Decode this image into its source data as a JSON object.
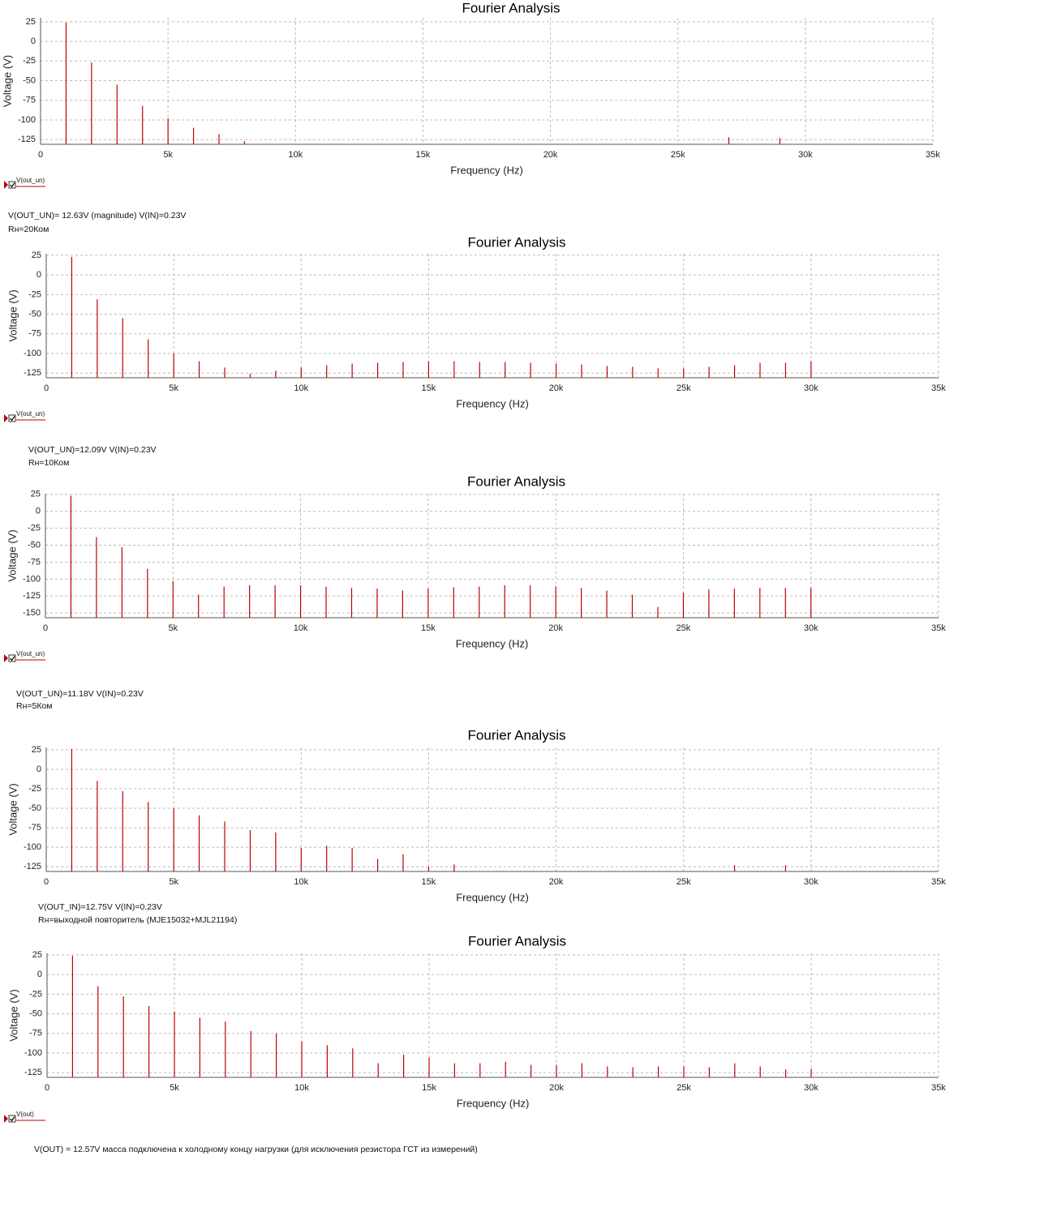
{
  "chart_data": [
    {
      "type": "bar",
      "title": "Fourier Analysis",
      "x_label": "Frequency (Hz)",
      "y_label": "Voltage (V)",
      "grid": true,
      "xlim": [
        0,
        35000
      ],
      "ylim": [
        -131,
        30
      ],
      "xticks": [
        0,
        {
          "value": 5000,
          "label": "5k"
        },
        {
          "value": 10000,
          "label": "10k"
        },
        {
          "value": 15000,
          "label": "15k"
        },
        {
          "value": 20000,
          "label": "20k"
        },
        {
          "value": 25000,
          "label": "25k"
        },
        {
          "value": 30000,
          "label": "30k"
        },
        {
          "value": 35000,
          "label": "35k"
        }
      ],
      "yticks": [
        25,
        0,
        -25,
        -50,
        -75,
        -100,
        -125
      ],
      "series": [
        {
          "name": "V(out_un)",
          "color": "#c00000",
          "x": [
            1000,
            2000,
            3000,
            4000,
            5000,
            6000,
            7000,
            8000,
            27000,
            29000
          ],
          "values": [
            24,
            -27,
            -55,
            -82,
            -98,
            -110,
            -118,
            -127,
            -122,
            -123
          ]
        }
      ]
    },
    {
      "type": "bar",
      "title": "Fourier Analysis",
      "x_label": "Frequency (Hz)",
      "y_label": "Voltage (V)",
      "grid": true,
      "xlim": [
        0,
        35000
      ],
      "ylim": [
        -131,
        27
      ],
      "xticks": [
        0,
        {
          "value": 5000,
          "label": "5k"
        },
        {
          "value": 10000,
          "label": "10k"
        },
        {
          "value": 15000,
          "label": "15k"
        },
        {
          "value": 20000,
          "label": "20k"
        },
        {
          "value": 25000,
          "label": "25k"
        },
        {
          "value": 30000,
          "label": "30k"
        },
        {
          "value": 35000,
          "label": "35k"
        }
      ],
      "yticks": [
        25,
        0,
        -25,
        -50,
        -75,
        -100,
        -125
      ],
      "series": [
        {
          "name": "V(out_un)",
          "color": "#c00000",
          "x": [
            1000,
            2000,
            3000,
            4000,
            5000,
            6000,
            7000,
            8000,
            9000,
            10000,
            11000,
            12000,
            13000,
            14000,
            15000,
            16000,
            17000,
            18000,
            19000,
            20000,
            21000,
            22000,
            23000,
            24000,
            25000,
            26000,
            27000,
            28000,
            29000,
            30000
          ],
          "values": [
            23,
            -31,
            -55,
            -82,
            -100,
            -110,
            -118,
            -126,
            -122,
            -118,
            -115,
            -113,
            -112,
            -111,
            -110,
            -110,
            -111,
            -111,
            -112,
            -113,
            -114,
            -116,
            -117,
            -119,
            -119,
            -117,
            -115,
            -112,
            -112,
            -110
          ]
        }
      ]
    },
    {
      "type": "bar",
      "title": "Fourier Analysis",
      "x_label": "Frequency (Hz)",
      "y_label": "Voltage (V)",
      "grid": true,
      "xlim": [
        0,
        35000
      ],
      "ylim": [
        -157,
        26
      ],
      "xticks": [
        0,
        {
          "value": 5000,
          "label": "5k"
        },
        {
          "value": 10000,
          "label": "10k"
        },
        {
          "value": 15000,
          "label": "15k"
        },
        {
          "value": 20000,
          "label": "20k"
        },
        {
          "value": 25000,
          "label": "25k"
        },
        {
          "value": 30000,
          "label": "30k"
        },
        {
          "value": 35000,
          "label": "35k"
        }
      ],
      "yticks": [
        25,
        0,
        -25,
        -50,
        -75,
        -100,
        -125,
        -150
      ],
      "series": [
        {
          "name": "V(out_un)",
          "color": "#c00000",
          "x": [
            1000,
            2000,
            3000,
            4000,
            5000,
            6000,
            7000,
            8000,
            9000,
            10000,
            11000,
            12000,
            13000,
            14000,
            15000,
            16000,
            17000,
            18000,
            19000,
            20000,
            21000,
            22000,
            23000,
            24000,
            25000,
            26000,
            27000,
            28000,
            29000,
            30000
          ],
          "values": [
            23,
            -38,
            -53,
            -85,
            -103,
            -123,
            -111,
            -109,
            -109,
            -109,
            -111,
            -113,
            -114,
            -117,
            -114,
            -112,
            -111,
            -109,
            -109,
            -111,
            -113,
            -117,
            -123,
            -141,
            -120,
            -115,
            -114,
            -113,
            -113,
            -113
          ]
        }
      ]
    },
    {
      "type": "bar",
      "title": "Fourier Analysis",
      "x_label": "Frequency (Hz)",
      "y_label": "Voltage (V)",
      "grid": true,
      "xlim": [
        0,
        35000
      ],
      "ylim": [
        -131,
        28
      ],
      "xticks": [
        0,
        {
          "value": 5000,
          "label": "5k"
        },
        {
          "value": 10000,
          "label": "10k"
        },
        {
          "value": 15000,
          "label": "15k"
        },
        {
          "value": 20000,
          "label": "20k"
        },
        {
          "value": 25000,
          "label": "25k"
        },
        {
          "value": 30000,
          "label": "30k"
        },
        {
          "value": 35000,
          "label": "35k"
        }
      ],
      "yticks": [
        25,
        0,
        -25,
        -50,
        -75,
        -100,
        -125
      ],
      "series": [
        {
          "color": "#c00000",
          "x": [
            1000,
            2000,
            3000,
            4000,
            5000,
            6000,
            7000,
            8000,
            9000,
            10000,
            11000,
            12000,
            13000,
            14000,
            15000,
            16000,
            27000,
            29000
          ],
          "values": [
            26,
            -15,
            -28,
            -42,
            -50,
            -59,
            -67,
            -78,
            -81,
            -101,
            -98,
            -101,
            -115,
            -109,
            -125,
            -122,
            -123,
            -123
          ]
        }
      ]
    },
    {
      "type": "bar",
      "title": "Fourier Analysis",
      "x_label": "Frequency (Hz)",
      "y_label": "Voltage (V)",
      "grid": true,
      "xlim": [
        0,
        35000
      ],
      "ylim": [
        -131,
        27
      ],
      "xticks": [
        0,
        {
          "value": 5000,
          "label": "5k"
        },
        {
          "value": 10000,
          "label": "10k"
        },
        {
          "value": 15000,
          "label": "15k"
        },
        {
          "value": 20000,
          "label": "20k"
        },
        {
          "value": 25000,
          "label": "25k"
        },
        {
          "value": 30000,
          "label": "30k"
        },
        {
          "value": 35000,
          "label": "35k"
        }
      ],
      "yticks": [
        25,
        0,
        -25,
        -50,
        -75,
        -100,
        -125
      ],
      "series": [
        {
          "name": "V(out)",
          "color": "#c00000",
          "x": [
            1000,
            2000,
            3000,
            4000,
            5000,
            6000,
            7000,
            8000,
            9000,
            10000,
            11000,
            12000,
            13000,
            14000,
            15000,
            16000,
            17000,
            18000,
            19000,
            20000,
            21000,
            22000,
            23000,
            24000,
            25000,
            26000,
            27000,
            28000,
            29000,
            30000
          ],
          "values": [
            24,
            -15,
            -28,
            -40,
            -47,
            -55,
            -60,
            -72,
            -75,
            -85,
            -90,
            -94,
            -113,
            -102,
            -106,
            -113,
            -113,
            -111,
            -115,
            -115,
            -113,
            -117,
            -118,
            -117,
            -117,
            -118,
            -113,
            -117,
            -121,
            -120
          ]
        }
      ]
    }
  ],
  "captions": [
    [
      "V(OUT_UN)= 12.63V (magnitude)  V(IN)=0.23V",
      "Rн=20Ком"
    ],
    [
      "V(OUT_UN)=12.09V V(IN)=0.23V",
      "Rн=10Ком"
    ],
    [
      "V(OUT_UN)=11.18V  V(IN)=0.23V",
      "Rн=5Ком"
    ],
    [
      "V(OUT_IN)=12.75V  V(IN)=0.23V",
      "Rн=выходной повторитель (MJE15032+MJL21194)"
    ],
    [
      "V(OUT) = 12.57V масса подключена к холодному концу нагрузки (для исключения резистора ГСТ из измерений)"
    ]
  ]
}
